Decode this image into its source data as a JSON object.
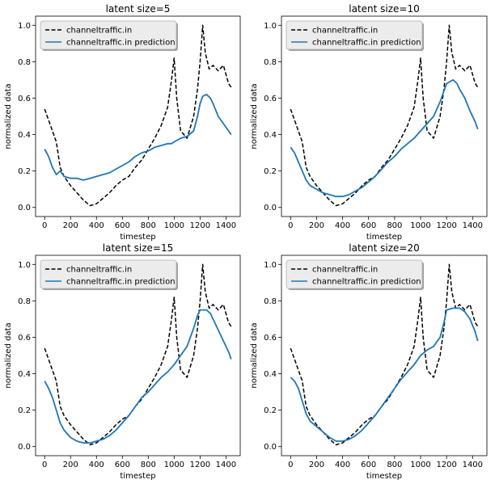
{
  "chart_data": [
    {
      "type": "line",
      "title": "latent size=5",
      "xlabel": "timestep",
      "ylabel": "normalized data",
      "xlim": [
        -70,
        1510
      ],
      "ylim": [
        -0.05,
        1.05
      ],
      "xticks": [
        0,
        200,
        400,
        600,
        800,
        1000,
        1200,
        1400
      ],
      "yticks": [
        0.0,
        0.2,
        0.4,
        0.6,
        0.8,
        1.0
      ],
      "legend_position": "top-left",
      "grid": false,
      "series": [
        {
          "name": "channeltraffic.in",
          "style": "dashed",
          "color": "#000000",
          "x": [
            0,
            30,
            60,
            90,
            120,
            150,
            200,
            250,
            300,
            350,
            400,
            450,
            500,
            550,
            600,
            650,
            700,
            750,
            800,
            850,
            900,
            950,
            980,
            1000,
            1020,
            1050,
            1100,
            1150,
            1180,
            1200,
            1220,
            1240,
            1270,
            1300,
            1340,
            1380,
            1420,
            1440
          ],
          "y": [
            0.54,
            0.48,
            0.42,
            0.36,
            0.22,
            0.17,
            0.12,
            0.08,
            0.04,
            0.01,
            0.02,
            0.05,
            0.08,
            0.12,
            0.15,
            0.17,
            0.22,
            0.26,
            0.32,
            0.38,
            0.45,
            0.55,
            0.7,
            0.82,
            0.6,
            0.42,
            0.38,
            0.5,
            0.65,
            0.8,
            1.0,
            0.85,
            0.76,
            0.78,
            0.75,
            0.78,
            0.68,
            0.66
          ]
        },
        {
          "name": "channeltraffic.in prediction",
          "style": "solid",
          "color": "#1f77b4",
          "x": [
            0,
            30,
            60,
            90,
            120,
            150,
            200,
            250,
            300,
            350,
            400,
            450,
            500,
            550,
            600,
            650,
            700,
            750,
            800,
            850,
            900,
            950,
            980,
            1000,
            1050,
            1100,
            1150,
            1180,
            1200,
            1220,
            1250,
            1280,
            1300,
            1340,
            1380,
            1420,
            1440
          ],
          "y": [
            0.32,
            0.28,
            0.22,
            0.18,
            0.2,
            0.17,
            0.16,
            0.16,
            0.15,
            0.16,
            0.17,
            0.18,
            0.19,
            0.21,
            0.23,
            0.25,
            0.28,
            0.3,
            0.31,
            0.33,
            0.34,
            0.35,
            0.35,
            0.36,
            0.38,
            0.39,
            0.42,
            0.5,
            0.57,
            0.61,
            0.62,
            0.6,
            0.57,
            0.5,
            0.46,
            0.42,
            0.4
          ]
        }
      ]
    },
    {
      "type": "line",
      "title": "latent size=10",
      "xlabel": "timestep",
      "ylabel": "normalized data",
      "xlim": [
        -70,
        1510
      ],
      "ylim": [
        -0.05,
        1.05
      ],
      "xticks": [
        0,
        200,
        400,
        600,
        800,
        1000,
        1200,
        1400
      ],
      "yticks": [
        0.0,
        0.2,
        0.4,
        0.6,
        0.8,
        1.0
      ],
      "legend_position": "top-left",
      "grid": false,
      "series": [
        {
          "name": "channeltraffic.in",
          "style": "dashed",
          "color": "#000000",
          "x": [
            0,
            30,
            60,
            90,
            120,
            150,
            200,
            250,
            300,
            350,
            400,
            450,
            500,
            550,
            600,
            650,
            700,
            750,
            800,
            850,
            900,
            950,
            980,
            1000,
            1020,
            1050,
            1100,
            1150,
            1180,
            1200,
            1220,
            1240,
            1270,
            1300,
            1340,
            1380,
            1420,
            1440
          ],
          "y": [
            0.54,
            0.48,
            0.42,
            0.36,
            0.22,
            0.17,
            0.12,
            0.08,
            0.04,
            0.01,
            0.02,
            0.05,
            0.08,
            0.12,
            0.15,
            0.17,
            0.22,
            0.26,
            0.32,
            0.38,
            0.45,
            0.55,
            0.7,
            0.82,
            0.6,
            0.42,
            0.38,
            0.5,
            0.65,
            0.8,
            1.0,
            0.85,
            0.76,
            0.78,
            0.75,
            0.78,
            0.68,
            0.66
          ]
        },
        {
          "name": "channeltraffic.in prediction",
          "style": "solid",
          "color": "#1f77b4",
          "x": [
            0,
            30,
            60,
            90,
            120,
            150,
            200,
            250,
            300,
            350,
            400,
            450,
            500,
            550,
            600,
            650,
            700,
            750,
            800,
            850,
            900,
            950,
            1000,
            1050,
            1100,
            1150,
            1200,
            1250,
            1280,
            1300,
            1340,
            1380,
            1420,
            1440
          ],
          "y": [
            0.33,
            0.3,
            0.25,
            0.2,
            0.15,
            0.12,
            0.1,
            0.08,
            0.07,
            0.06,
            0.06,
            0.07,
            0.09,
            0.11,
            0.14,
            0.17,
            0.21,
            0.25,
            0.28,
            0.32,
            0.35,
            0.38,
            0.42,
            0.46,
            0.5,
            0.58,
            0.68,
            0.7,
            0.68,
            0.65,
            0.6,
            0.53,
            0.47,
            0.43
          ]
        }
      ]
    },
    {
      "type": "line",
      "title": "latent size=15",
      "xlabel": "timestep",
      "ylabel": "normalized data",
      "xlim": [
        -70,
        1510
      ],
      "ylim": [
        -0.05,
        1.05
      ],
      "xticks": [
        0,
        200,
        400,
        600,
        800,
        1000,
        1200,
        1400
      ],
      "yticks": [
        0.0,
        0.2,
        0.4,
        0.6,
        0.8,
        1.0
      ],
      "legend_position": "top-left",
      "grid": false,
      "series": [
        {
          "name": "channeltraffic.in",
          "style": "dashed",
          "color": "#000000",
          "x": [
            0,
            30,
            60,
            90,
            120,
            150,
            200,
            250,
            300,
            350,
            400,
            450,
            500,
            550,
            600,
            650,
            700,
            750,
            800,
            850,
            900,
            950,
            980,
            1000,
            1020,
            1050,
            1100,
            1150,
            1180,
            1200,
            1220,
            1240,
            1270,
            1300,
            1340,
            1380,
            1420,
            1440
          ],
          "y": [
            0.54,
            0.48,
            0.42,
            0.36,
            0.22,
            0.17,
            0.12,
            0.08,
            0.04,
            0.01,
            0.02,
            0.05,
            0.08,
            0.12,
            0.15,
            0.17,
            0.22,
            0.26,
            0.32,
            0.38,
            0.45,
            0.55,
            0.7,
            0.82,
            0.6,
            0.42,
            0.38,
            0.5,
            0.65,
            0.8,
            1.0,
            0.85,
            0.76,
            0.78,
            0.75,
            0.78,
            0.68,
            0.66
          ]
        },
        {
          "name": "channeltraffic.in prediction",
          "style": "solid",
          "color": "#1f77b4",
          "x": [
            0,
            30,
            60,
            90,
            120,
            150,
            200,
            250,
            300,
            350,
            400,
            450,
            500,
            550,
            600,
            650,
            700,
            750,
            800,
            850,
            900,
            950,
            1000,
            1050,
            1100,
            1150,
            1180,
            1200,
            1250,
            1280,
            1300,
            1340,
            1380,
            1420,
            1440
          ],
          "y": [
            0.36,
            0.32,
            0.27,
            0.2,
            0.13,
            0.09,
            0.05,
            0.03,
            0.02,
            0.02,
            0.03,
            0.04,
            0.06,
            0.09,
            0.13,
            0.17,
            0.22,
            0.27,
            0.3,
            0.34,
            0.38,
            0.41,
            0.45,
            0.5,
            0.55,
            0.65,
            0.72,
            0.75,
            0.75,
            0.73,
            0.7,
            0.64,
            0.58,
            0.52,
            0.48
          ]
        }
      ]
    },
    {
      "type": "line",
      "title": "latent size=20",
      "xlabel": "timestep",
      "ylabel": "normalized data",
      "xlim": [
        -70,
        1510
      ],
      "ylim": [
        -0.05,
        1.05
      ],
      "xticks": [
        0,
        200,
        400,
        600,
        800,
        1000,
        1200,
        1400
      ],
      "yticks": [
        0.0,
        0.2,
        0.4,
        0.6,
        0.8,
        1.0
      ],
      "legend_position": "top-left",
      "grid": false,
      "series": [
        {
          "name": "channeltraffic.in",
          "style": "dashed",
          "color": "#000000",
          "x": [
            0,
            30,
            60,
            90,
            120,
            150,
            200,
            250,
            300,
            350,
            400,
            450,
            500,
            550,
            600,
            650,
            700,
            750,
            800,
            850,
            900,
            950,
            980,
            1000,
            1020,
            1050,
            1100,
            1150,
            1180,
            1200,
            1220,
            1240,
            1270,
            1300,
            1340,
            1380,
            1420,
            1440
          ],
          "y": [
            0.54,
            0.48,
            0.42,
            0.36,
            0.22,
            0.17,
            0.12,
            0.08,
            0.04,
            0.01,
            0.02,
            0.05,
            0.08,
            0.12,
            0.15,
            0.17,
            0.22,
            0.26,
            0.32,
            0.38,
            0.45,
            0.55,
            0.7,
            0.82,
            0.6,
            0.42,
            0.38,
            0.5,
            0.65,
            0.8,
            1.0,
            0.85,
            0.76,
            0.78,
            0.75,
            0.78,
            0.68,
            0.66
          ]
        },
        {
          "name": "channeltraffic.in prediction",
          "style": "solid",
          "color": "#1f77b4",
          "x": [
            0,
            30,
            60,
            90,
            120,
            150,
            200,
            250,
            300,
            350,
            400,
            450,
            500,
            550,
            600,
            650,
            700,
            750,
            800,
            850,
            900,
            950,
            1000,
            1050,
            1100,
            1150,
            1180,
            1200,
            1250,
            1300,
            1340,
            1380,
            1420,
            1440
          ],
          "y": [
            0.38,
            0.36,
            0.32,
            0.25,
            0.18,
            0.14,
            0.11,
            0.08,
            0.05,
            0.03,
            0.03,
            0.04,
            0.06,
            0.09,
            0.13,
            0.17,
            0.22,
            0.27,
            0.32,
            0.37,
            0.41,
            0.45,
            0.5,
            0.53,
            0.55,
            0.6,
            0.68,
            0.75,
            0.76,
            0.76,
            0.74,
            0.7,
            0.63,
            0.58
          ]
        }
      ]
    }
  ]
}
